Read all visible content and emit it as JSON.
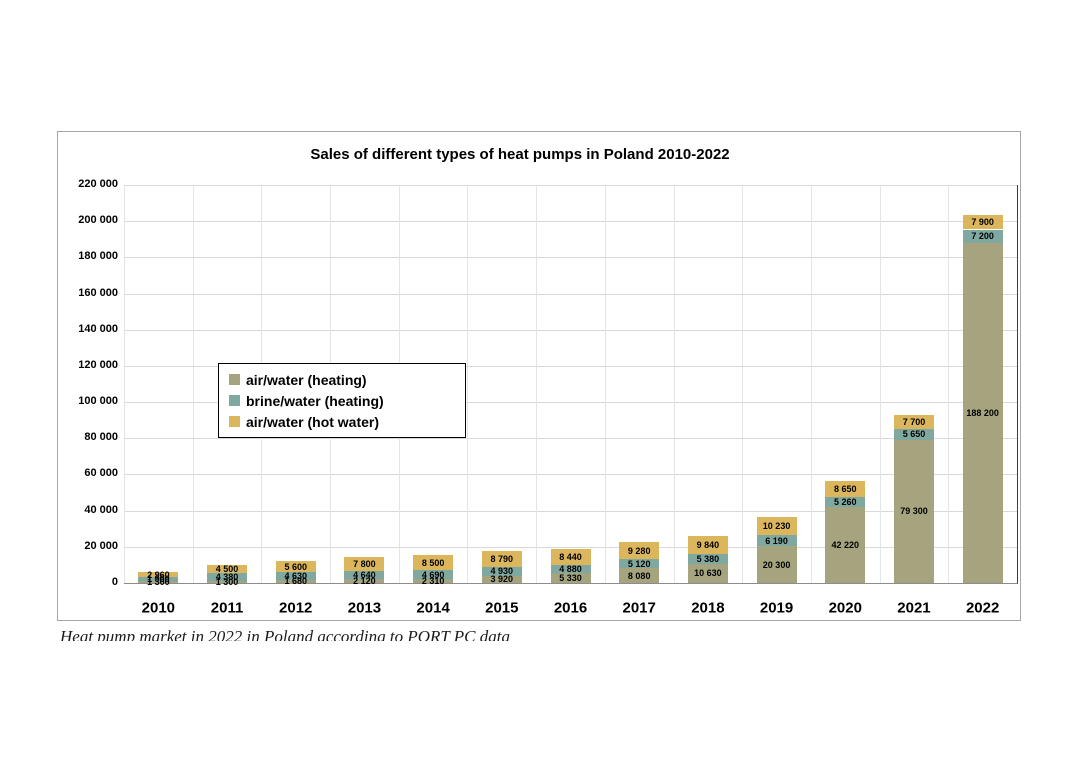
{
  "chart_data": {
    "type": "bar",
    "stacked": true,
    "title": "Sales of different types of heat pumps in Poland 2010-2022",
    "categories": [
      "2010",
      "2011",
      "2012",
      "2013",
      "2014",
      "2015",
      "2016",
      "2017",
      "2018",
      "2019",
      "2020",
      "2021",
      "2022"
    ],
    "series": [
      {
        "name": "air/water (heating)",
        "color": "#a5a47e",
        "values": [
          1300,
          1300,
          1680,
          2120,
          2310,
          3920,
          5330,
          8080,
          10630,
          20300,
          42220,
          79300,
          188200
        ]
      },
      {
        "name": "brine/water (heating)",
        "color": "#7fa8a0",
        "values": [
          1900,
          4380,
          4630,
          4640,
          4690,
          4930,
          4880,
          5120,
          5380,
          6190,
          5260,
          5650,
          7200
        ]
      },
      {
        "name": "air/water (hot water)",
        "color": "#dcb65c",
        "values": [
          2960,
          4500,
          5600,
          7800,
          8500,
          8790,
          8440,
          9280,
          9840,
          10230,
          8650,
          7700,
          7900
        ]
      }
    ],
    "ylim": [
      0,
      220000
    ],
    "ytick_step": 20000,
    "ytick_labels": [
      "0",
      "20 000",
      "40 000",
      "60 000",
      "80 000",
      "100 000",
      "120 000",
      "140 000",
      "160 000",
      "180 000",
      "200 000",
      "220 000"
    ],
    "grid": true,
    "data_labels": true,
    "legend_position": "middle-left",
    "footnote": "Heat pump market in 2022 in Poland according to PORT PC data"
  },
  "colors": {
    "grid": "#d9d9d9",
    "axis": "#8c8c8c",
    "plot_right_border": "#3f3f3f",
    "frame_border": "#a6a6a6",
    "label_text": "#000000"
  }
}
